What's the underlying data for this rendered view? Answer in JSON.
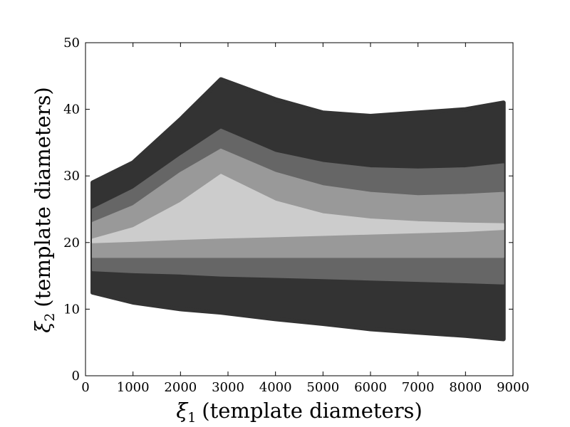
{
  "chart_data": {
    "type": "area",
    "x_axis": {
      "label_symbol": "ξ",
      "label_subscript": "1",
      "label_text": "(template diameters)",
      "range": [
        0,
        9000
      ],
      "ticks": [
        "0",
        "1000",
        "2000",
        "3000",
        "4000",
        "5000",
        "6000",
        "7000",
        "8000",
        "9000"
      ]
    },
    "y_axis": {
      "label_symbol": "ξ",
      "label_subscript": "2",
      "label_text": "(template diameters)",
      "range": [
        0,
        50
      ],
      "ticks": [
        "0",
        "10",
        "20",
        "30",
        "40",
        "50"
      ]
    },
    "grid": false,
    "legend": "none",
    "x": [
      150,
      1000,
      2000,
      2850,
      4000,
      5000,
      6000,
      7000,
      8000,
      8800
    ],
    "series": [
      {
        "color": "#333333",
        "upper": [
          29.0,
          32.0,
          38.5,
          44.5,
          41.5,
          39.5,
          39.0,
          39.5,
          40.0,
          41.0
        ],
        "lower": [
          12.5,
          11.0,
          10.0,
          9.5,
          8.5,
          7.8,
          7.0,
          6.5,
          6.0,
          5.5
        ]
      },
      {
        "color": "#666666",
        "upper": [
          25.0,
          28.0,
          33.0,
          37.0,
          33.5,
          32.0,
          31.2,
          31.0,
          31.2,
          31.8
        ],
        "lower": [
          15.8,
          15.5,
          15.3,
          15.0,
          14.8,
          14.6,
          14.4,
          14.2,
          14.0,
          13.8
        ]
      },
      {
        "color": "#999999",
        "upper": [
          23.0,
          25.5,
          30.5,
          34.0,
          30.5,
          28.5,
          27.5,
          27.0,
          27.2,
          27.5
        ],
        "lower": [
          17.8,
          17.8,
          17.8,
          17.8,
          17.8,
          17.8,
          17.8,
          17.8,
          17.8,
          17.8
        ]
      },
      {
        "color": "#cccccc",
        "upper": [
          20.5,
          22.2,
          26.0,
          30.2,
          26.2,
          24.3,
          23.5,
          23.1,
          22.9,
          22.8
        ],
        "lower": [
          20.0,
          20.2,
          20.5,
          20.7,
          20.9,
          21.1,
          21.3,
          21.5,
          21.7,
          22.0
        ]
      }
    ]
  }
}
